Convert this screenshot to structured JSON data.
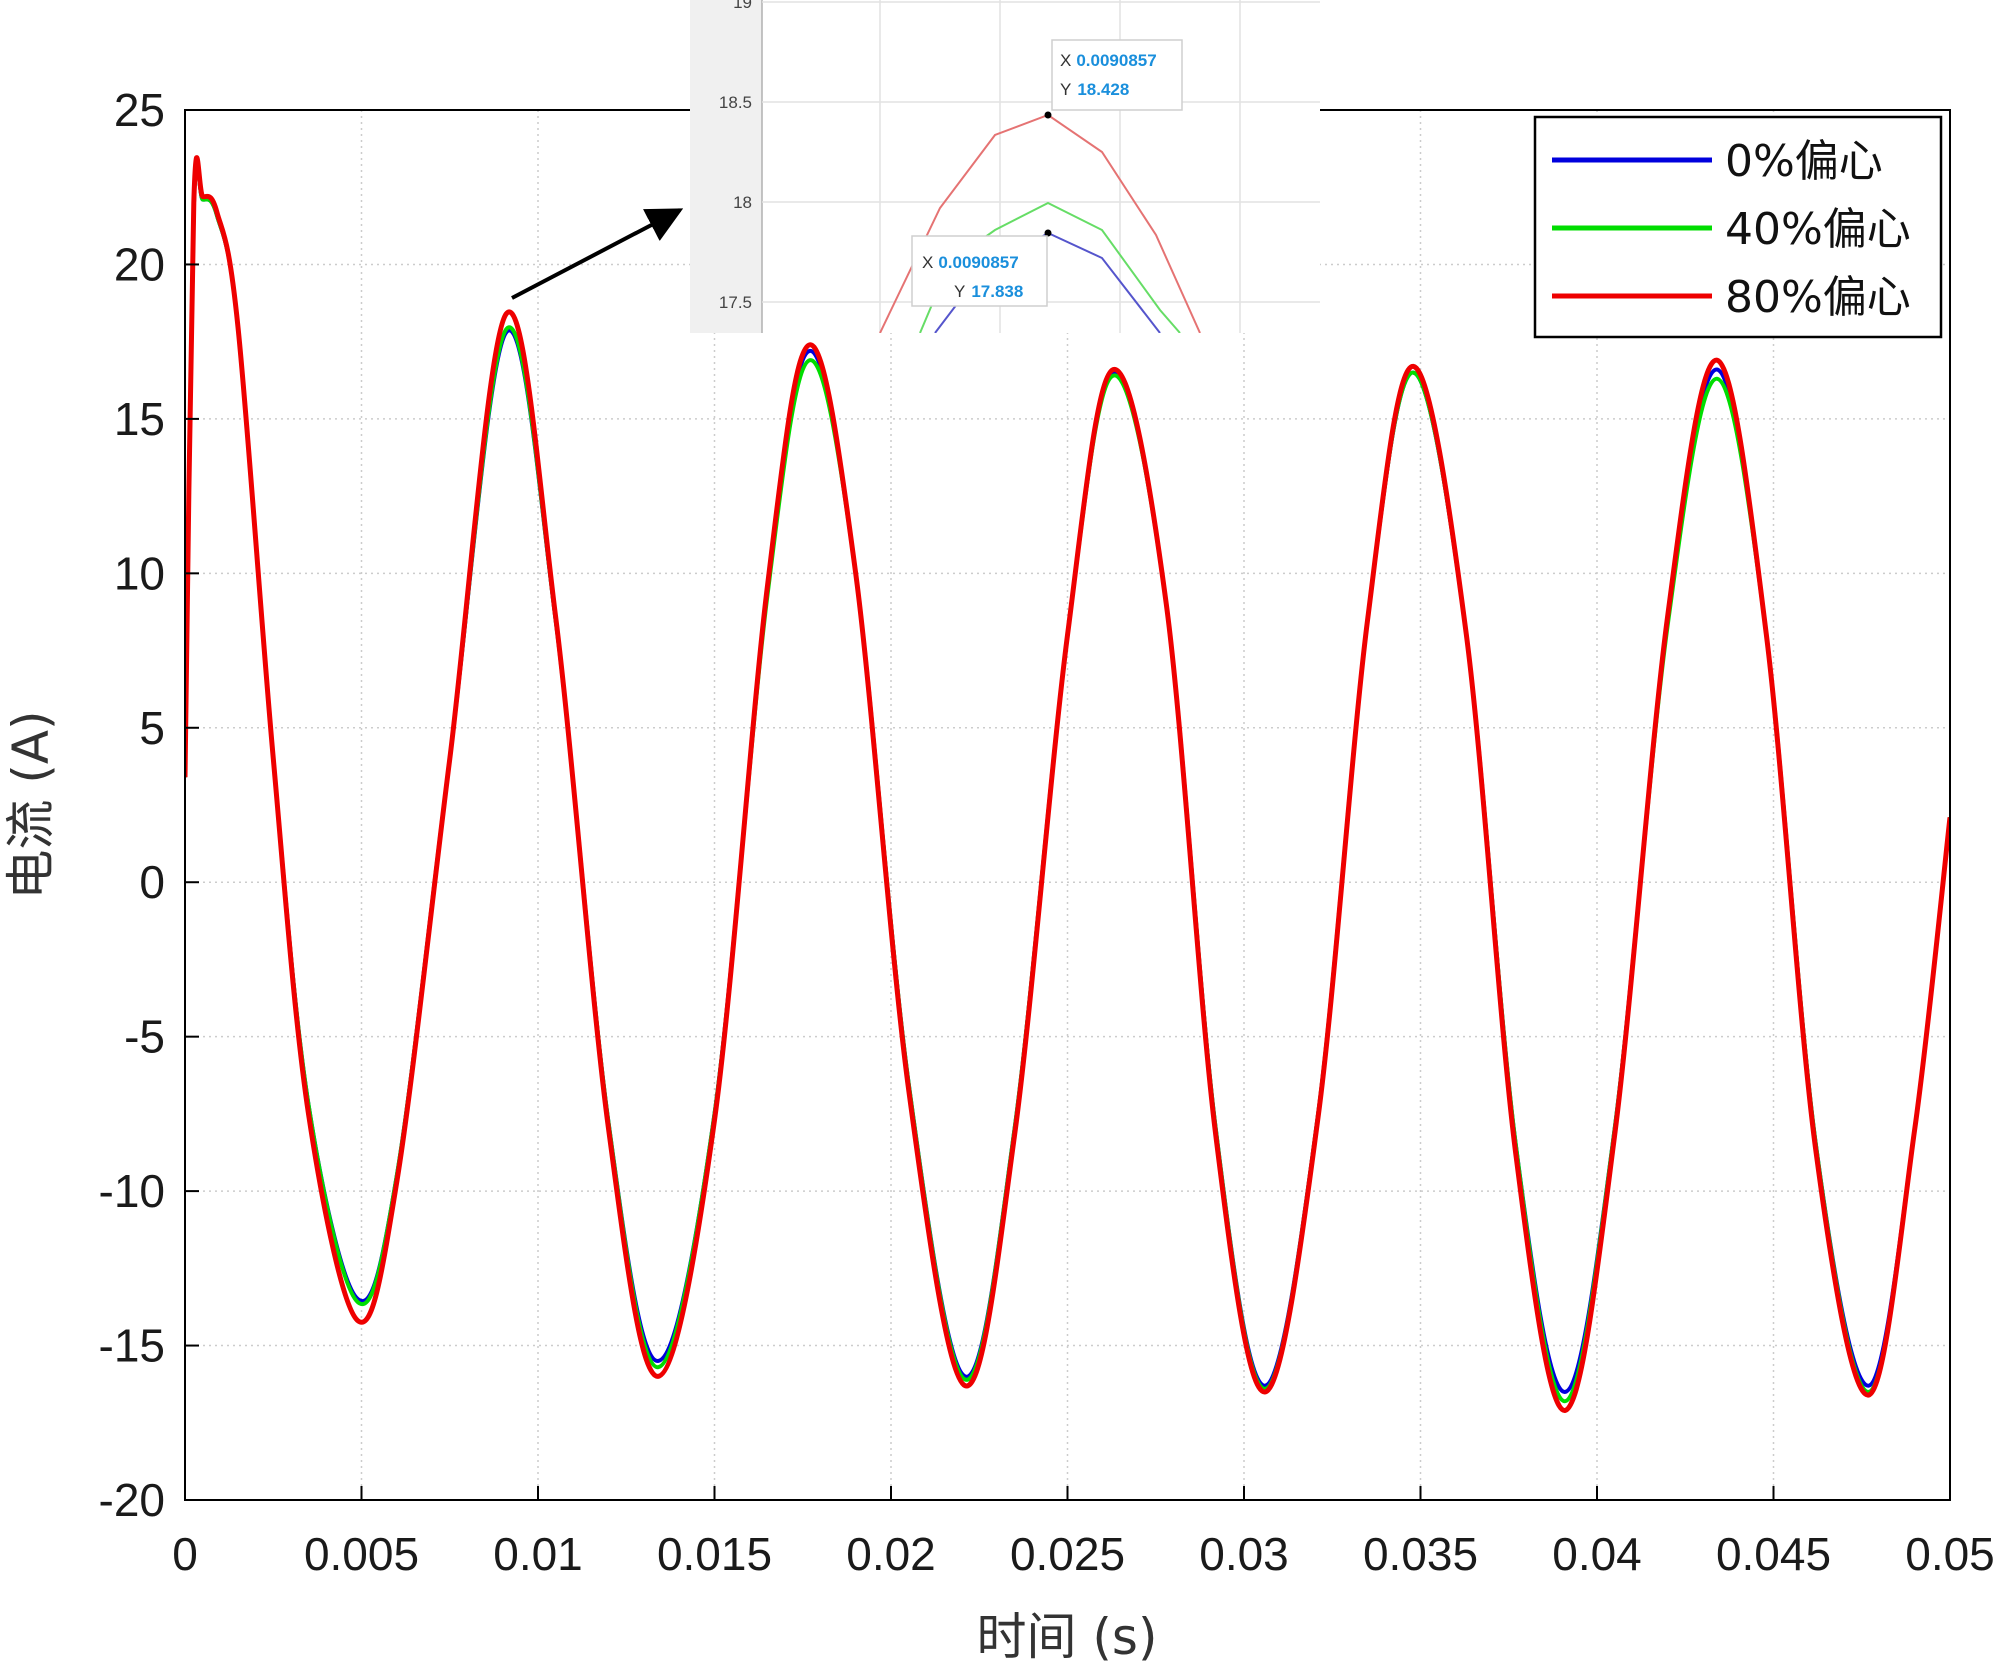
{
  "chart_data": {
    "type": "line",
    "title": "",
    "xlabel": "时间 (s)",
    "ylabel": "电流 (A)",
    "xlim": [
      0,
      0.05
    ],
    "ylim": [
      -20,
      25
    ],
    "xticks": [
      0,
      0.005,
      0.01,
      0.015,
      0.02,
      0.025,
      0.03,
      0.035,
      0.04,
      0.045,
      0.05
    ],
    "xtick_labels": [
      "0",
      "0.005",
      "0.01",
      "0.015",
      "0.02",
      "0.025",
      "0.03",
      "0.035",
      "0.04",
      "0.045",
      "0.05"
    ],
    "yticks": [
      -20,
      -15,
      -10,
      -5,
      0,
      5,
      10,
      15,
      20,
      25
    ],
    "ytick_labels": [
      "-20",
      "-15",
      "-10",
      "-5",
      "0",
      "5",
      "10",
      "15",
      "20",
      "25"
    ],
    "grid": true,
    "legend_position": "top-right",
    "x": [
      0,
      0.00025,
      0.0005,
      0.0009,
      0.0015,
      0.0025,
      0.0035,
      0.0049,
      0.006,
      0.0075,
      0.0091,
      0.0105,
      0.012,
      0.0134,
      0.015,
      0.0165,
      0.0177,
      0.019,
      0.0205,
      0.0221,
      0.0235,
      0.025,
      0.0263,
      0.0278,
      0.0292,
      0.0306,
      0.0321,
      0.0335,
      0.0348,
      0.0363,
      0.0377,
      0.0391,
      0.0405,
      0.042,
      0.0434,
      0.0448,
      0.0462,
      0.0477,
      0.049,
      0.05
    ],
    "series": [
      {
        "name": "0%偏心",
        "color": "#0000dd",
        "values": [
          3.4,
          21.8,
          22.1,
          21.6,
          18,
          4,
          -7.2,
          -13.5,
          -9.5,
          4,
          17.8,
          8.5,
          -7.8,
          -15.5,
          -7.5,
          9.5,
          17.2,
          10,
          -6.5,
          -16,
          -8,
          8,
          16.5,
          9,
          -8,
          -16.3,
          -7.5,
          8.5,
          16.5,
          8,
          -8.5,
          -16.5,
          -8,
          8.5,
          16.6,
          8,
          -8.5,
          -16.3,
          -8,
          2.1
        ]
      },
      {
        "name": "40%偏心",
        "color": "#00dd00",
        "values": [
          3.4,
          21.8,
          22.1,
          21.6,
          18,
          4,
          -7.2,
          -13.6,
          -9.5,
          4,
          17.9,
          8.5,
          -7.8,
          -15.7,
          -7.5,
          9.3,
          16.9,
          10,
          -6.5,
          -16.1,
          -8,
          8,
          16.4,
          9,
          -8,
          -16.4,
          -7.5,
          8.5,
          16.5,
          8,
          -8.5,
          -16.8,
          -8,
          8.3,
          16.3,
          8,
          -8.5,
          -16.5,
          -8,
          2.1
        ]
      },
      {
        "name": "80%偏心",
        "color": "#ee0000",
        "values": [
          3.4,
          22,
          22.2,
          21.7,
          18,
          4,
          -7.5,
          -14.2,
          -9.7,
          4,
          18.4,
          8.6,
          -8,
          -16,
          -7.7,
          9.6,
          17.4,
          10,
          -6.7,
          -16.3,
          -8.2,
          8,
          16.6,
          9,
          -8.2,
          -16.5,
          -7.6,
          8.5,
          16.7,
          8,
          -8.8,
          -17.1,
          -8.2,
          8.6,
          16.9,
          8,
          -8.7,
          -16.6,
          -8,
          2.1
        ]
      }
    ],
    "inset": {
      "ytick_labels": [
        "18.5",
        "18",
        "17.5"
      ],
      "partial_top_label": "19",
      "datatips": [
        {
          "x_label": "X",
          "x_value": "0.0090857",
          "y_label": "Y",
          "y_value": "18.428"
        },
        {
          "x_label": "X",
          "x_value": "0.0090857",
          "y_label": "Y",
          "y_value": "17.838"
        }
      ]
    }
  }
}
